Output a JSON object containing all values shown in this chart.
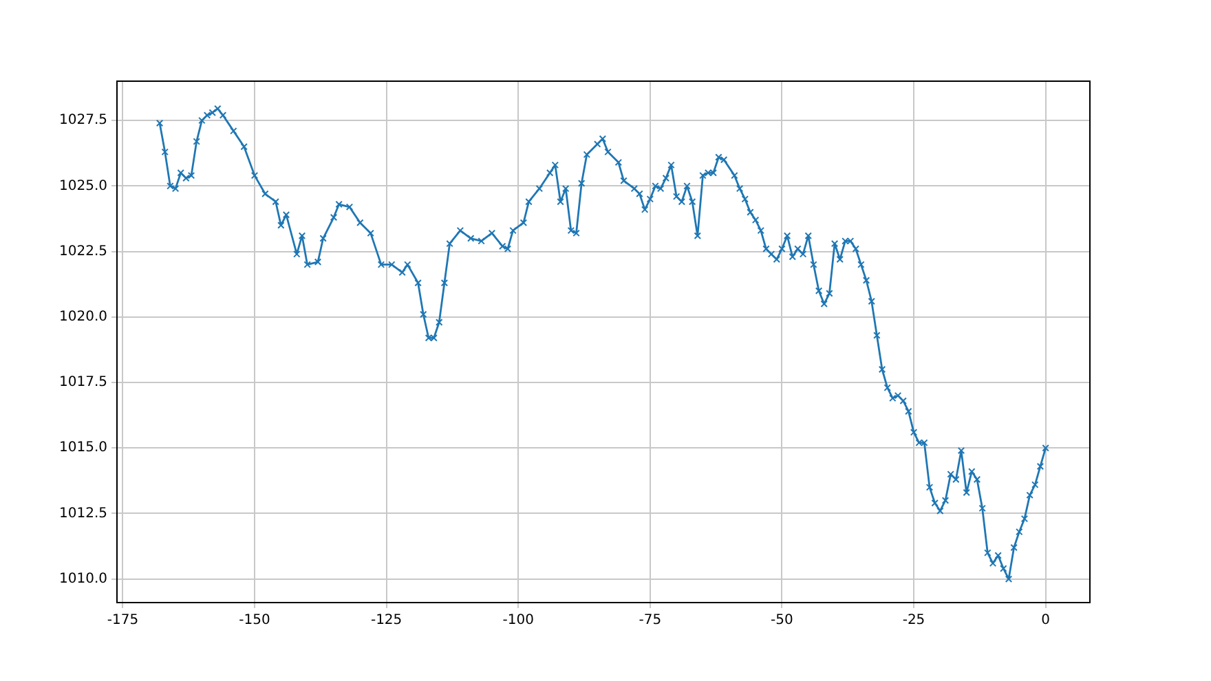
{
  "chart_data": {
    "type": "line",
    "marker": "cross",
    "grid": true,
    "legend": false,
    "xlim": [
      -176.1,
      8.4
    ],
    "xticks": [
      -175,
      -150,
      -125,
      -100,
      -75,
      -50,
      -25,
      0
    ],
    "ylim": [
      1009.1,
      1029.0
    ],
    "yticks": [
      {
        "value": 1010,
        "label": "1010.0"
      },
      1012.5,
      {
        "value": 1015,
        "label": "1015.0"
      },
      1017.5,
      {
        "value": 1020,
        "label": "1020.0"
      },
      1022.5,
      {
        "value": 1025,
        "label": "1025.0"
      },
      1027.5
    ],
    "x": [
      -168,
      -167,
      -166,
      -165,
      -164,
      -163,
      -162,
      -161,
      -160,
      -159,
      -158,
      -157,
      -156,
      -154,
      -152,
      -150,
      -148,
      -146,
      -145,
      -144,
      -142,
      -141,
      -140,
      -138,
      -137,
      -135,
      -134,
      -132,
      -130,
      -128,
      -126,
      -124,
      -122,
      -121,
      -119,
      -118,
      -117,
      -116,
      -115,
      -114,
      -113,
      -111,
      -109,
      -107,
      -105,
      -103,
      -102,
      -101,
      -99,
      -98,
      -96,
      -94,
      -93,
      -92,
      -91,
      -90,
      -89,
      -88,
      -87,
      -85,
      -84,
      -83,
      -81,
      -80,
      -78,
      -77,
      -76,
      -75,
      -74,
      -73,
      -72,
      -71,
      -70,
      -69,
      -68,
      -67,
      -66,
      -65,
      -64,
      -63,
      -62,
      -61,
      -59,
      -58,
      -57,
      -56,
      -55,
      -54,
      -53,
      -52,
      -51,
      -50,
      -49,
      -48,
      -47,
      -46,
      -45,
      -44,
      -43,
      -42,
      -41,
      -40,
      -39,
      -38,
      -37,
      -36,
      -35,
      -34,
      -33,
      -32,
      -31,
      -30,
      -29,
      -28,
      -27,
      -26,
      -25,
      -24,
      -23,
      -22,
      -21,
      -20,
      -19,
      -18,
      -17,
      -16,
      -15,
      -14,
      -13,
      -12,
      -11,
      -10,
      -9,
      -8,
      -7,
      -6,
      -5,
      -4,
      -3,
      -2,
      -1,
      0
    ],
    "series": [
      {
        "color": "#1f77b4",
        "values": [
          1027.4,
          1026.3,
          1025.0,
          1024.9,
          1025.5,
          1025.3,
          1025.4,
          1026.7,
          1027.5,
          1027.7,
          1027.8,
          1027.95,
          1027.7,
          1027.1,
          1026.5,
          1025.4,
          1024.7,
          1024.4,
          1023.5,
          1023.9,
          1022.4,
          1023.1,
          1022.0,
          1022.1,
          1023.0,
          1023.8,
          1024.3,
          1024.2,
          1023.6,
          1023.2,
          1022.0,
          1022.0,
          1021.7,
          1022.0,
          1021.3,
          1020.1,
          1019.2,
          1019.2,
          1019.8,
          1021.3,
          1022.8,
          1023.3,
          1023.0,
          1022.9,
          1023.2,
          1022.7,
          1022.6,
          1023.3,
          1023.6,
          1024.4,
          1024.9,
          1025.5,
          1025.8,
          1024.4,
          1024.9,
          1023.3,
          1023.2,
          1025.1,
          1026.2,
          1026.6,
          1026.8,
          1026.3,
          1025.9,
          1025.2,
          1024.9,
          1024.7,
          1024.1,
          1024.5,
          1025.0,
          1024.9,
          1025.3,
          1025.8,
          1024.6,
          1024.4,
          1025.0,
          1024.4,
          1023.1,
          1025.4,
          1025.5,
          1025.5,
          1026.1,
          1026.0,
          1025.4,
          1024.9,
          1024.5,
          1024.0,
          1023.7,
          1023.3,
          1022.6,
          1022.4,
          1022.2,
          1022.6,
          1023.1,
          1022.3,
          1022.6,
          1022.4,
          1023.1,
          1022.0,
          1021.0,
          1020.5,
          1020.9,
          1022.8,
          1022.2,
          1022.9,
          1022.9,
          1022.6,
          1022.0,
          1021.4,
          1020.6,
          1019.3,
          1018.0,
          1017.3,
          1016.9,
          1017.0,
          1016.8,
          1016.4,
          1015.6,
          1015.2,
          1015.2,
          1013.5,
          1012.9,
          1012.6,
          1013.0,
          1014.0,
          1013.8,
          1014.9,
          1013.3,
          1014.1,
          1013.8,
          1012.7,
          1011.0,
          1010.6,
          1010.9,
          1010.4,
          1010.0,
          1011.2,
          1011.8,
          1012.3,
          1013.2,
          1013.6,
          1014.3,
          1015.0
        ]
      }
    ]
  }
}
